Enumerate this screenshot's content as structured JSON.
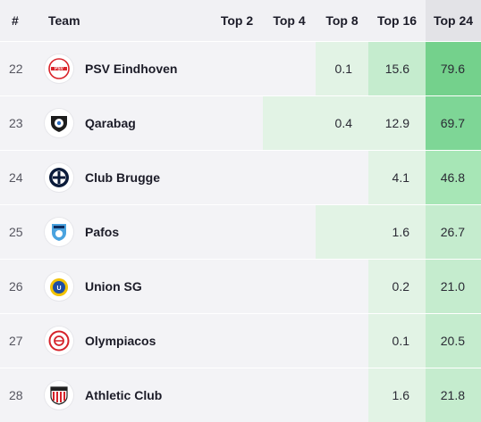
{
  "columns": {
    "rank": "#",
    "team": "Team",
    "top2": "Top 2",
    "top4": "Top 4",
    "top8": "Top 8",
    "top16": "Top 16",
    "top24": "Top 24"
  },
  "rows": [
    {
      "rank": "22",
      "team": "PSV Eindhoven",
      "crest": "psv-crest-icon",
      "top2": "",
      "top4": "",
      "top8": "0.1",
      "top16": "15.6",
      "top24": "79.6"
    },
    {
      "rank": "23",
      "team": "Qarabag",
      "crest": "qarabag-crest-icon",
      "top2": "",
      "top4": "",
      "top8": "0.4",
      "top16": "12.9",
      "top24": "69.7"
    },
    {
      "rank": "24",
      "team": "Club Brugge",
      "crest": "club-brugge-crest-icon",
      "top2": "",
      "top4": "",
      "top8": "",
      "top16": "4.1",
      "top24": "46.8"
    },
    {
      "rank": "25",
      "team": "Pafos",
      "crest": "pafos-crest-icon",
      "top2": "",
      "top4": "",
      "top8": "",
      "top16": "1.6",
      "top24": "26.7"
    },
    {
      "rank": "26",
      "team": "Union SG",
      "crest": "union-sg-crest-icon",
      "top2": "",
      "top4": "",
      "top8": "",
      "top16": "0.2",
      "top24": "21.0"
    },
    {
      "rank": "27",
      "team": "Olympiacos",
      "crest": "olympiacos-crest-icon",
      "top2": "",
      "top4": "",
      "top8": "",
      "top16": "0.1",
      "top24": "20.5"
    },
    {
      "rank": "28",
      "team": "Athletic Club",
      "crest": "athletic-club-crest-icon",
      "top2": "",
      "top4": "",
      "top8": "",
      "top16": "1.6",
      "top24": "21.8"
    }
  ],
  "colors": {
    "header_bg": "#f1f1f4",
    "row_bg": "#f3f3f6",
    "heat_scale": [
      "#f3f3f6",
      "#e2f3e5",
      "#c5ecce",
      "#a7e6b6",
      "#7ed696",
      "#74d18c"
    ]
  }
}
